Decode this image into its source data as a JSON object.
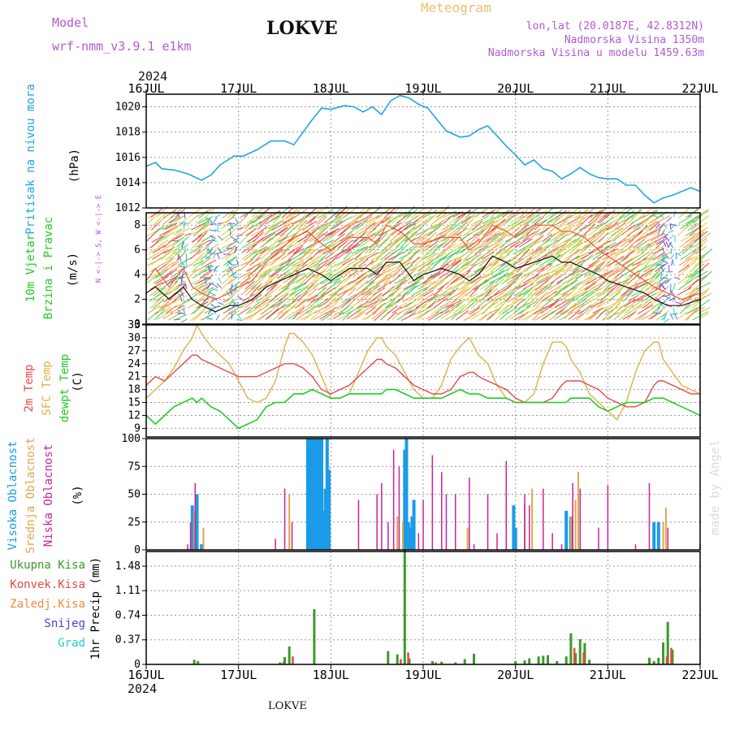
{
  "header": {
    "title": "LOKVE",
    "model_label": "Model",
    "model_name": "wrf-nmm_v3.9.1 e1km",
    "product": "Meteogram",
    "coords": "lon,lat (20.0187E, 42.8312N)",
    "elevation": "Nadmorska Visina 1350m",
    "model_elevation": "Nadmorska Visina u modelu 1459.63m",
    "year_top": "2024",
    "year_bottom": "2024",
    "footer_station": "LOKVE",
    "credit": "made by Angel"
  },
  "colors": {
    "pressure": "#1fa6e0",
    "temp2m": "#e8484a",
    "sfc_temp": "#e0b04a",
    "dewpoint": "#22cc22",
    "high_cloud": "#1b9be8",
    "mid_cloud": "#e0a84a",
    "low_cloud": "#cc2299",
    "total_precip": "#3a9a2a",
    "conv_precip": "#e8484a",
    "frozen_precip": "#f08a3a",
    "snow": "#4444dd",
    "hail": "#22cccc",
    "wind_speed": "#111111",
    "wind_gust": "#ee5533",
    "label_purple": "#b05ad0",
    "label_orange": "#e8c070"
  },
  "chart_data": [
    {
      "id": "pressure",
      "type": "line",
      "ylabel": "Pritisak na nivou mora",
      "units": "(hPa)",
      "ylim": [
        1012,
        1021
      ],
      "yticks": [
        1012,
        1014,
        1016,
        1018,
        1020
      ],
      "x_unit": "day offset from 16JUL 00z",
      "x": [
        0,
        0.1,
        0.17,
        0.3,
        0.45,
        0.6,
        0.7,
        0.8,
        0.95,
        1.05,
        1.2,
        1.35,
        1.5,
        1.6,
        1.7,
        1.8,
        1.9,
        2.0,
        2.15,
        2.25,
        2.35,
        2.45,
        2.55,
        2.65,
        2.75,
        2.85,
        2.95,
        3.05,
        3.15,
        3.25,
        3.4,
        3.5,
        3.6,
        3.7,
        3.8,
        3.9,
        4.0,
        4.1,
        4.2,
        4.3,
        4.4,
        4.5,
        4.6,
        4.7,
        4.8,
        4.9,
        5.0,
        5.1,
        5.2,
        5.3,
        5.4,
        5.5,
        5.6,
        5.7,
        5.8,
        5.9,
        6.0
      ],
      "series": [
        {
          "values": [
            1015.3,
            1015.6,
            1015.1,
            1015.0,
            1014.7,
            1014.2,
            1014.6,
            1015.4,
            1016.1,
            1016.1,
            1016.6,
            1017.3,
            1017.3,
            1017.0,
            1018.0,
            1019.0,
            1019.9,
            1019.8,
            1020.1,
            1020.0,
            1019.6,
            1020.0,
            1019.4,
            1020.5,
            1020.9,
            1020.7,
            1020.2,
            1019.9,
            1019.0,
            1018.1,
            1017.6,
            1017.7,
            1018.2,
            1018.5,
            1017.7,
            1016.9,
            1016.2,
            1015.4,
            1015.8,
            1015.1,
            1014.9,
            1014.3,
            1014.7,
            1015.2,
            1014.7,
            1014.4,
            1014.3,
            1014.3,
            1013.8,
            1013.8,
            1013.0,
            1012.4,
            1012.8,
            1013.0,
            1013.3,
            1013.6,
            1013.3
          ]
        }
      ]
    },
    {
      "id": "wind",
      "type": "line",
      "ylabel": "10m Vjetar",
      "ylabel2": "Brzina i Pravac",
      "units": "(m/s)",
      "compass": "N <-|-> S, W <-|-> E",
      "ylim": [
        0,
        9
      ],
      "yticks": [
        0,
        2,
        4,
        6,
        8
      ],
      "x": [
        0,
        0.1,
        0.25,
        0.4,
        0.5,
        0.6,
        0.75,
        0.9,
        1.0,
        1.15,
        1.3,
        1.45,
        1.6,
        1.75,
        1.9,
        2.0,
        2.2,
        2.4,
        2.5,
        2.6,
        2.75,
        2.9,
        3.0,
        3.2,
        3.4,
        3.5,
        3.6,
        3.75,
        3.9,
        4.0,
        4.2,
        4.4,
        4.5,
        4.6,
        4.75,
        4.9,
        5.0,
        5.2,
        5.4,
        5.5,
        5.65,
        5.8,
        6.0
      ],
      "series": [
        {
          "name": "speed",
          "values": [
            2.5,
            3.0,
            2.0,
            3.0,
            2.0,
            1.5,
            1.0,
            1.5,
            1.5,
            2.0,
            3.0,
            3.5,
            4.0,
            4.5,
            4.0,
            3.5,
            4.5,
            4.5,
            4.0,
            5.0,
            5.0,
            3.5,
            4.0,
            4.5,
            4.0,
            3.5,
            4.0,
            5.5,
            5.0,
            4.5,
            5.0,
            5.5,
            5.0,
            5.0,
            4.5,
            4.0,
            3.5,
            3.0,
            2.5,
            2.0,
            1.5,
            1.5,
            2.0
          ]
        },
        {
          "name": "gust",
          "values": [
            3.5,
            4.5,
            3.0,
            4.5,
            3.0,
            2.5,
            2.0,
            2.5,
            3.0,
            3.5,
            5.0,
            6.0,
            7.0,
            7.5,
            6.5,
            6.0,
            7.0,
            7.0,
            6.5,
            8.0,
            7.5,
            6.5,
            6.5,
            7.0,
            7.0,
            6.0,
            6.5,
            8.0,
            7.5,
            7.0,
            8.0,
            8.0,
            7.5,
            7.5,
            7.0,
            6.0,
            5.5,
            4.5,
            3.5,
            3.0,
            2.5,
            2.0,
            2.5
          ]
        }
      ]
    },
    {
      "id": "temperature",
      "type": "line",
      "ylabel": "2m Temp",
      "ylabel2": "SFC Temp",
      "ylabel3": "dewpt Temp",
      "units": "(C)",
      "ylim": [
        7,
        33
      ],
      "yticks": [
        9,
        12,
        15,
        18,
        21,
        24,
        27,
        30,
        33
      ],
      "x": [
        0,
        0.1,
        0.2,
        0.3,
        0.4,
        0.5,
        0.55,
        0.6,
        0.7,
        0.8,
        0.9,
        1.0,
        1.1,
        1.2,
        1.3,
        1.4,
        1.5,
        1.55,
        1.6,
        1.7,
        1.8,
        1.9,
        2.0,
        2.1,
        2.2,
        2.3,
        2.4,
        2.5,
        2.55,
        2.6,
        2.7,
        2.8,
        2.9,
        3.0,
        3.1,
        3.2,
        3.3,
        3.4,
        3.5,
        3.55,
        3.6,
        3.7,
        3.8,
        3.9,
        4.0,
        4.1,
        4.2,
        4.3,
        4.4,
        4.5,
        4.55,
        4.6,
        4.7,
        4.8,
        4.9,
        5.0,
        5.1,
        5.2,
        5.3,
        5.4,
        5.5,
        5.55,
        5.6,
        5.7,
        5.8,
        5.9,
        6.0
      ],
      "series": [
        {
          "name": "2m Temp",
          "values": [
            19,
            21,
            20,
            22,
            24,
            26,
            26,
            25,
            24,
            23,
            22,
            21,
            21,
            21,
            22,
            23,
            24,
            24,
            24,
            23,
            21,
            18,
            17,
            18,
            19,
            21,
            23,
            25,
            25,
            24,
            23,
            21,
            19,
            18,
            17,
            17,
            18,
            21,
            22,
            22,
            21,
            20,
            19,
            18,
            16,
            15,
            15,
            15,
            16,
            19,
            20,
            20,
            20,
            19,
            18,
            16,
            15,
            14,
            14,
            15,
            19,
            20,
            20,
            19,
            18,
            17,
            17
          ]
        },
        {
          "name": "SFC Temp",
          "values": [
            16,
            18,
            20,
            23,
            27,
            30,
            33,
            31,
            28,
            26,
            24,
            20,
            16,
            15,
            16,
            20,
            28,
            31,
            31,
            29,
            26,
            21,
            16,
            16,
            17,
            22,
            27,
            30,
            30,
            28,
            26,
            22,
            18,
            16,
            16,
            19,
            25,
            28,
            30,
            28,
            26,
            24,
            19,
            16,
            15,
            15,
            17,
            24,
            29,
            29,
            28,
            25,
            22,
            17,
            15,
            13,
            11,
            15,
            22,
            27,
            29,
            29,
            25,
            22,
            19,
            18,
            17
          ]
        },
        {
          "name": "dewpt Temp",
          "values": [
            12,
            10,
            12,
            14,
            15,
            16,
            15,
            16,
            14,
            13,
            11,
            9,
            10,
            11,
            14,
            15,
            15,
            16,
            17,
            17,
            18,
            17,
            16,
            16,
            17,
            17,
            17,
            17,
            17,
            18,
            18,
            17,
            16,
            16,
            16,
            16,
            17,
            18,
            17,
            17,
            17,
            16,
            16,
            16,
            15,
            15,
            15,
            15,
            15,
            15,
            15,
            16,
            16,
            16,
            14,
            13,
            14,
            15,
            15,
            15,
            16,
            16,
            16,
            15,
            14,
            13,
            12
          ]
        }
      ]
    },
    {
      "id": "clouds",
      "type": "bar",
      "ylabel": "Visoka Oblacnost",
      "ylabel2": "Srednja Oblacnost",
      "ylabel3": "Niska Oblacnost",
      "units": "(%)",
      "ylim": [
        0,
        100
      ],
      "yticks": [
        0,
        25,
        50,
        75,
        100
      ],
      "series": [
        {
          "name": "Visoka Oblacnost",
          "x": [
            0.5,
            0.55,
            0.6,
            1.75,
            1.77,
            1.79,
            1.8,
            1.82,
            1.84,
            1.86,
            1.88,
            1.9,
            1.92,
            1.94,
            1.96,
            1.98,
            2.8,
            2.82,
            2.84,
            2.86,
            2.88,
            2.9,
            3.98,
            4.0,
            4.55,
            4.6,
            5.5,
            5.55
          ],
          "values": [
            40,
            50,
            5,
            100,
            100,
            100,
            100,
            100,
            100,
            100,
            100,
            100,
            35,
            55,
            100,
            72,
            90,
            100,
            25,
            20,
            30,
            45,
            40,
            20,
            35,
            30,
            25,
            25
          ]
        },
        {
          "name": "Srednja Oblacnost",
          "x": [
            0.52,
            0.62,
            1.55,
            2.72,
            2.78,
            3.48,
            4.1,
            4.18,
            4.6,
            4.65,
            4.68,
            5.6,
            5.63
          ],
          "values": [
            35,
            20,
            50,
            30,
            25,
            20,
            42,
            55,
            30,
            45,
            70,
            25,
            38
          ]
        },
        {
          "name": "Niska Oblacnost",
          "x": [
            0.45,
            0.48,
            0.53,
            1.4,
            1.5,
            1.58,
            2.3,
            2.5,
            2.55,
            2.62,
            2.68,
            2.74,
            2.95,
            3.0,
            3.1,
            3.2,
            3.25,
            3.35,
            3.5,
            3.55,
            3.7,
            3.8,
            3.9,
            4.1,
            4.15,
            4.3,
            4.4,
            4.5,
            4.62,
            4.7,
            4.9,
            5.0,
            5.3,
            5.45,
            5.65,
            6.0
          ],
          "values": [
            5,
            25,
            60,
            10,
            55,
            25,
            45,
            50,
            60,
            25,
            90,
            75,
            15,
            45,
            85,
            70,
            50,
            50,
            65,
            5,
            50,
            15,
            80,
            50,
            40,
            55,
            15,
            5,
            60,
            55,
            20,
            58,
            5,
            60,
            20,
            5
          ]
        }
      ]
    },
    {
      "id": "precip",
      "type": "bar",
      "ylabel": "1hr Precip (mm)",
      "legend": [
        "Ukupna Kisa",
        "Konvek.Kisa",
        "Zaledj.Kisa",
        "Snijeg",
        "Grad"
      ],
      "ylim": [
        0,
        1.7
      ],
      "yticks": [
        0,
        0.37,
        0.74,
        1.11,
        1.48
      ],
      "ytick_labels": [
        "0",
        "0.37",
        "0.74",
        "1.11",
        "1.48"
      ],
      "series": [
        {
          "name": "Ukupna Kisa",
          "x": [
            0.52,
            0.56,
            1.45,
            1.5,
            1.55,
            1.82,
            2.62,
            2.72,
            2.8,
            2.85,
            3.1,
            3.2,
            3.35,
            3.45,
            3.55,
            4.0,
            4.1,
            4.15,
            4.25,
            4.3,
            4.35,
            4.45,
            4.55,
            4.6,
            4.65,
            4.7,
            4.75,
            4.8,
            5.45,
            5.5,
            5.55,
            5.6,
            5.65,
            5.7
          ],
          "values": [
            0.07,
            0.05,
            0.03,
            0.11,
            0.27,
            0.83,
            0.2,
            0.15,
            1.72,
            0.09,
            0.05,
            0.04,
            0.03,
            0.08,
            0.16,
            0.05,
            0.06,
            0.09,
            0.12,
            0.13,
            0.14,
            0.05,
            0.12,
            0.47,
            0.17,
            0.38,
            0.32,
            0.07,
            0.1,
            0.05,
            0.1,
            0.33,
            0.64,
            0.22
          ]
        },
        {
          "name": "Konvek.Kisa",
          "x": [
            1.47,
            1.57,
            2.74,
            2.82,
            3.12,
            4.62,
            4.72,
            5.62,
            5.67
          ],
          "values": [
            0.04,
            0.12,
            0.08,
            0.18,
            0.03,
            0.25,
            0.18,
            0.12,
            0.25
          ]
        }
      ]
    }
  ],
  "x_axis": {
    "tick_labels": [
      "16JUL",
      "17JUL",
      "18JUL",
      "19JUL",
      "20JUL",
      "21JUL",
      "22JUL"
    ]
  }
}
